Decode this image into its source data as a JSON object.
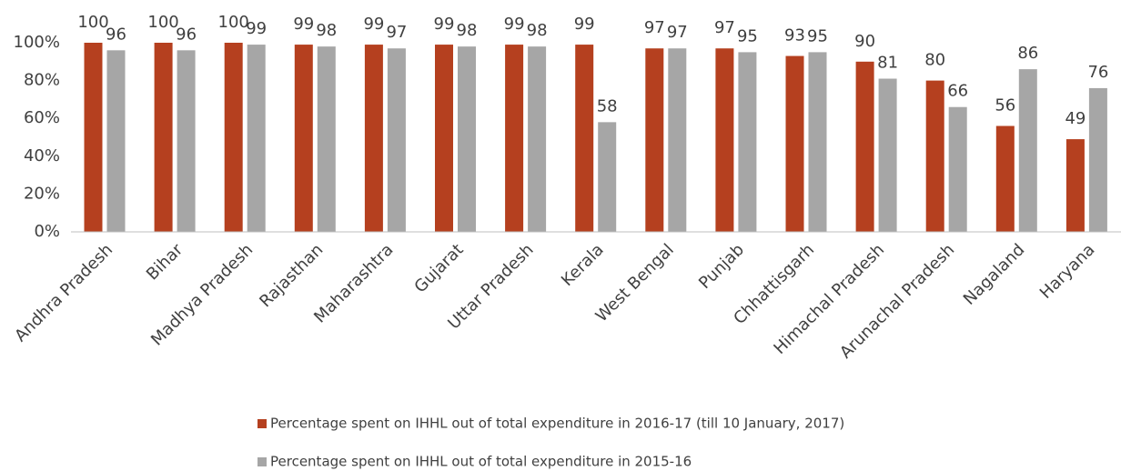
{
  "chart_data": {
    "type": "bar",
    "categories": [
      "Andhra Pradesh",
      "Bihar",
      "Madhya Pradesh",
      "Rajasthan",
      "Maharashtra",
      "Gujarat",
      "Uttar Pradesh",
      "Kerala",
      "West Bengal",
      "Punjab",
      "Chhattisgarh",
      "Himachal Pradesh",
      "Arunachal Pradesh",
      "Nagaland",
      "Haryana"
    ],
    "series": [
      {
        "name": "Percentage spent on IHHL out of total expenditure in 2016-17 (till 10 January, 2017)",
        "color": "#b5401f",
        "values": [
          100,
          100,
          100,
          99,
          99,
          99,
          99,
          99,
          97,
          97,
          93,
          90,
          80,
          56,
          49
        ]
      },
      {
        "name": "Percentage spent on IHHL out of total expenditure in 2015-16",
        "color": "#a6a6a6",
        "values": [
          96,
          96,
          99,
          98,
          97,
          98,
          98,
          58,
          97,
          95,
          95,
          81,
          66,
          86,
          76
        ]
      }
    ],
    "ylim": [
      0,
      100
    ],
    "yticks": [
      {
        "value": 0,
        "label": "0%"
      },
      {
        "value": 20,
        "label": "20%"
      },
      {
        "value": 40,
        "label": "40%"
      },
      {
        "value": 60,
        "label": "60%"
      },
      {
        "value": 80,
        "label": "80%"
      },
      {
        "value": 100,
        "label": "100%"
      }
    ],
    "grid": false
  }
}
